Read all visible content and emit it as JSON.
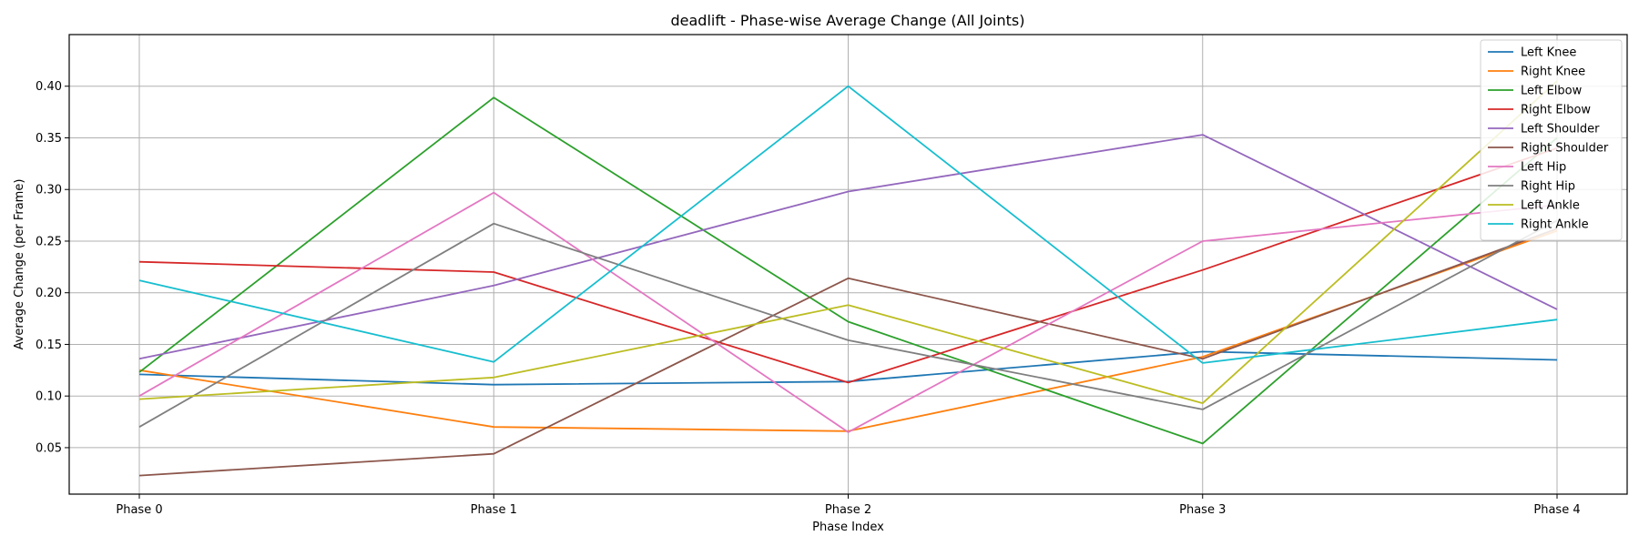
{
  "chart_data": {
    "type": "line",
    "title": "deadlift - Phase-wise Average Change (All Joints)",
    "xlabel": "Phase Index",
    "ylabel": "Average Change (per Frame)",
    "categories": [
      "Phase 0",
      "Phase 1",
      "Phase 2",
      "Phase 3",
      "Phase 4"
    ],
    "ylim": [
      0.005,
      0.45
    ],
    "yticks": [
      0.05,
      0.1,
      0.15,
      0.2,
      0.25,
      0.3,
      0.35,
      0.4
    ],
    "ytick_labels": [
      "0.05",
      "0.10",
      "0.15",
      "0.20",
      "0.25",
      "0.30",
      "0.35",
      "0.40"
    ],
    "grid": true,
    "legend_position": "top-right",
    "series": [
      {
        "name": "Left Knee",
        "color": "#1f77b4",
        "values": [
          0.121,
          0.111,
          0.114,
          0.143,
          0.135
        ]
      },
      {
        "name": "Right Knee",
        "color": "#ff7f0e",
        "values": [
          0.125,
          0.07,
          0.066,
          0.138,
          0.26
        ]
      },
      {
        "name": "Left Elbow",
        "color": "#2ca02c",
        "values": [
          0.123,
          0.389,
          0.172,
          0.054,
          0.35
        ]
      },
      {
        "name": "Right Elbow",
        "color": "#d62728",
        "values": [
          0.23,
          0.22,
          0.113,
          0.222,
          0.34
        ]
      },
      {
        "name": "Left Shoulder",
        "color": "#9467bd",
        "values": [
          0.136,
          0.207,
          0.298,
          0.353,
          0.184
        ]
      },
      {
        "name": "Right Shoulder",
        "color": "#8c564b",
        "values": [
          0.023,
          0.044,
          0.214,
          0.136,
          0.262
        ]
      },
      {
        "name": "Left Hip",
        "color": "#e377c2",
        "values": [
          0.1,
          0.297,
          0.065,
          0.25,
          0.285
        ]
      },
      {
        "name": "Right Hip",
        "color": "#7f7f7f",
        "values": [
          0.07,
          0.267,
          0.154,
          0.087,
          0.27
        ]
      },
      {
        "name": "Left Ankle",
        "color": "#bcbd22",
        "values": [
          0.097,
          0.118,
          0.188,
          0.093,
          0.405
        ]
      },
      {
        "name": "Right Ankle",
        "color": "#17becf",
        "values": [
          0.212,
          0.133,
          0.4,
          0.132,
          0.174
        ]
      }
    ]
  }
}
